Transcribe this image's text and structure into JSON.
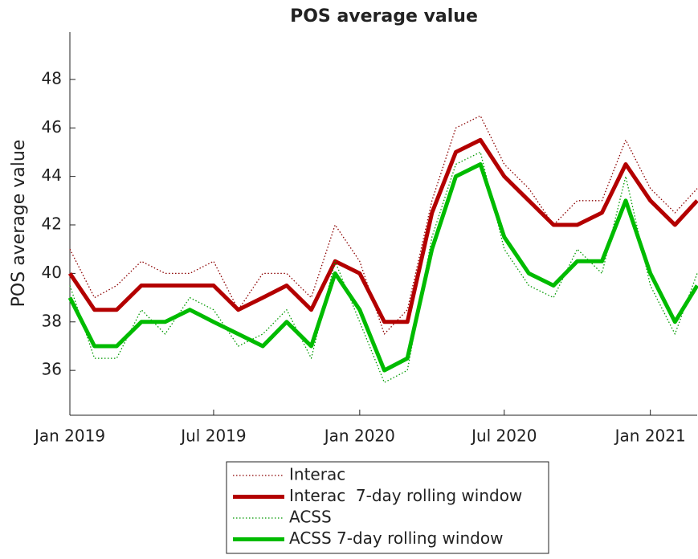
{
  "chart_data": {
    "type": "line",
    "title": "POS average value",
    "ylabel": "POS average value",
    "x": [
      "2019-01",
      "2019-02",
      "2019-03",
      "2019-04",
      "2019-05",
      "2019-06",
      "2019-07",
      "2019-08",
      "2019-09",
      "2019-10",
      "2019-11",
      "2019-12",
      "2020-01",
      "2020-02",
      "2020-03",
      "2020-04",
      "2020-05",
      "2020-06",
      "2020-07",
      "2020-08",
      "2020-09",
      "2020-10",
      "2020-11",
      "2020-12",
      "2021-01",
      "2021-02",
      "2021-03"
    ],
    "series": [
      {
        "name": "Interac",
        "color": "#8b0000",
        "style": "dotted",
        "values": [
          41,
          39,
          39.5,
          40.5,
          40,
          40,
          40.5,
          38.5,
          40,
          40,
          39,
          42,
          40.5,
          37.5,
          38.5,
          43,
          46,
          46.5,
          44.5,
          43.5,
          42,
          43,
          43,
          45.5,
          43.5,
          42.5,
          43.5
        ]
      },
      {
        "name": "Interac  7-day rolling window",
        "color": "#b30000",
        "style": "solid",
        "values": [
          40,
          38.5,
          38.5,
          39.5,
          39.5,
          39.5,
          39.5,
          38.5,
          39,
          39.5,
          38.5,
          40.5,
          40,
          38,
          38,
          42.5,
          45,
          45.5,
          44,
          43,
          42,
          42,
          42.5,
          44.5,
          43,
          42,
          43
        ]
      },
      {
        "name": "ACSS",
        "color": "#009900",
        "style": "dotted",
        "values": [
          39.5,
          36.5,
          36.5,
          38.5,
          37.5,
          39,
          38.5,
          37,
          37.5,
          38.5,
          36.5,
          40.5,
          38,
          35.5,
          36,
          41.5,
          44.5,
          45,
          41,
          39.5,
          39,
          41,
          40,
          44,
          39.5,
          37.5,
          40
        ]
      },
      {
        "name": "ACSS 7-day rolling window",
        "color": "#00bb00",
        "style": "solid",
        "values": [
          39,
          37,
          37,
          38,
          38,
          38.5,
          38,
          37.5,
          37,
          38,
          37,
          40,
          38.5,
          36,
          36.5,
          41,
          44,
          44.5,
          41.5,
          40,
          39.5,
          40.5,
          40.5,
          43,
          40,
          38,
          39.5
        ]
      }
    ],
    "xlim": [
      "2019-01",
      "2021-03"
    ],
    "xticks": [
      {
        "value": "2019-01",
        "label": "Jan 2019"
      },
      {
        "value": "2019-07",
        "label": "Jul 2019"
      },
      {
        "value": "2020-01",
        "label": "Jan 2020"
      },
      {
        "value": "2020-07",
        "label": "Jul 2020"
      },
      {
        "value": "2021-01",
        "label": "Jan 2021"
      }
    ],
    "ylim": [
      34.15,
      49.95
    ],
    "yticks": [
      36,
      38,
      40,
      42,
      44,
      46,
      48
    ],
    "grid": false,
    "legend": "below"
  }
}
